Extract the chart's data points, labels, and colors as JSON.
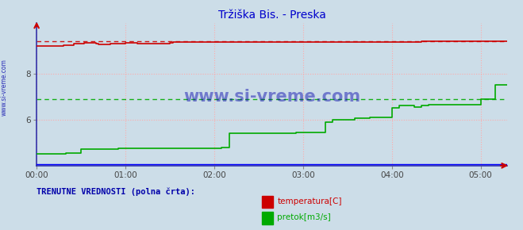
{
  "title": "Tržiška Bis. - Preska",
  "title_color": "#0000cc",
  "bg_color": "#ccdde8",
  "plot_bg_color": "#ccdde8",
  "grid_color": "#ffaaaa",
  "xlabel_color": "#444444",
  "ylabel_color": "#444444",
  "x_ticks": [
    0,
    60,
    120,
    180,
    240,
    300
  ],
  "x_tick_labels": [
    "00:00",
    "01:00",
    "02:00",
    "03:00",
    "04:00",
    "05:00"
  ],
  "xlim": [
    0,
    318
  ],
  "ylim": [
    4.0,
    10.2
  ],
  "y_ticks": [
    6,
    8
  ],
  "temp_color": "#cc0000",
  "flow_color": "#00aa00",
  "height_color": "#0000ff",
  "watermark": "www.si-vreme.com",
  "watermark_color": "#0000aa",
  "legend_label1": "temperatura[C]",
  "legend_label2": "pretok[m3/s]",
  "footer_text": "TRENUTNE VREDNOSTI (polna črta):",
  "footer_color": "#0000aa",
  "sidebar_text": "www.si-vreme.com",
  "sidebar_color": "#0000aa",
  "temp_max_line": 9.42,
  "flow_avg_line": 6.88,
  "temp_data_x": [
    0,
    2,
    3,
    5,
    8,
    10,
    12,
    15,
    18,
    20,
    22,
    25,
    28,
    30,
    32,
    35,
    38,
    40,
    42,
    45,
    48,
    50,
    52,
    55,
    58,
    60,
    63,
    65,
    68,
    70,
    72,
    75,
    78,
    80,
    82,
    85,
    88,
    90,
    92,
    95,
    98,
    100,
    105,
    110,
    115,
    120,
    125,
    130,
    135,
    140,
    145,
    150,
    155,
    160,
    165,
    170,
    175,
    180,
    185,
    190,
    195,
    200,
    205,
    210,
    215,
    220,
    225,
    230,
    235,
    240,
    245,
    250,
    255,
    260,
    265,
    270,
    275,
    280,
    285,
    290,
    295,
    300,
    305,
    310,
    315,
    318
  ],
  "temp_data_y": [
    9.2,
    9.2,
    9.2,
    9.2,
    9.2,
    9.2,
    9.2,
    9.2,
    9.25,
    9.25,
    9.25,
    9.3,
    9.3,
    9.3,
    9.35,
    9.35,
    9.35,
    9.32,
    9.28,
    9.28,
    9.28,
    9.3,
    9.32,
    9.32,
    9.32,
    9.35,
    9.35,
    9.34,
    9.32,
    9.3,
    9.3,
    9.3,
    9.3,
    9.3,
    9.32,
    9.32,
    9.32,
    9.35,
    9.38,
    9.38,
    9.38,
    9.38,
    9.38,
    9.38,
    9.38,
    9.38,
    9.38,
    9.38,
    9.38,
    9.38,
    9.38,
    9.38,
    9.38,
    9.38,
    9.38,
    9.38,
    9.38,
    9.38,
    9.38,
    9.38,
    9.38,
    9.38,
    9.38,
    9.38,
    9.38,
    9.38,
    9.38,
    9.38,
    9.38,
    9.38,
    9.38,
    9.38,
    9.38,
    9.4,
    9.4,
    9.4,
    9.4,
    9.4,
    9.4,
    9.4,
    9.4,
    9.42,
    9.42,
    9.42,
    9.42,
    9.42
  ],
  "flow_data_x": [
    0,
    5,
    10,
    15,
    20,
    25,
    30,
    35,
    40,
    45,
    50,
    55,
    60,
    65,
    70,
    75,
    80,
    85,
    90,
    95,
    100,
    105,
    110,
    115,
    120,
    125,
    130,
    135,
    140,
    145,
    150,
    155,
    160,
    165,
    170,
    175,
    180,
    185,
    190,
    195,
    200,
    205,
    210,
    215,
    220,
    225,
    230,
    235,
    240,
    245,
    250,
    255,
    260,
    265,
    270,
    275,
    280,
    285,
    290,
    295,
    300,
    305,
    310,
    315,
    318
  ],
  "flow_data_y": [
    4.5,
    4.5,
    4.5,
    4.5,
    4.55,
    4.55,
    4.7,
    4.7,
    4.7,
    4.7,
    4.7,
    4.75,
    4.75,
    4.75,
    4.75,
    4.75,
    4.75,
    4.75,
    4.75,
    4.75,
    4.75,
    4.75,
    4.75,
    4.75,
    4.75,
    4.8,
    5.4,
    5.4,
    5.4,
    5.4,
    5.4,
    5.42,
    5.42,
    5.42,
    5.42,
    5.45,
    5.45,
    5.45,
    5.45,
    5.9,
    6.0,
    6.0,
    6.0,
    6.05,
    6.05,
    6.1,
    6.1,
    6.1,
    6.5,
    6.6,
    6.6,
    6.55,
    6.6,
    6.65,
    6.65,
    6.65,
    6.65,
    6.65,
    6.65,
    6.65,
    6.88,
    6.88,
    7.5,
    7.5,
    7.5
  ],
  "height_data_x": [
    0,
    318
  ],
  "height_data_y": [
    4.05,
    4.05
  ]
}
